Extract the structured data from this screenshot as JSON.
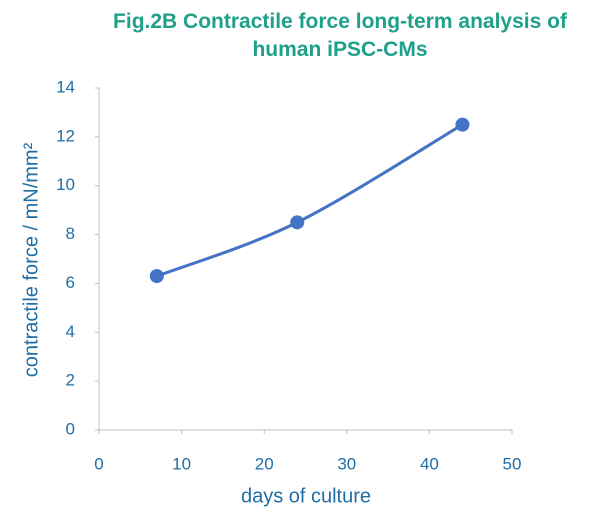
{
  "chart_data": {
    "type": "line",
    "title": "Fig.2B Contractile force long-term analysis of human iPSC-CMs",
    "x_label": "days of culture",
    "y_label": "contractile force / mN/mm²",
    "x": [
      7,
      24,
      44
    ],
    "series": [
      {
        "name": "contractile force",
        "color": "#4472c4",
        "values": [
          6.3,
          8.5,
          12.5
        ]
      }
    ],
    "xlim": [
      0,
      50
    ],
    "xticks": [
      0,
      10,
      20,
      30,
      40,
      50
    ],
    "ylim": [
      0,
      14
    ],
    "yticks": [
      0,
      2,
      4,
      6,
      8,
      10,
      12,
      14
    ],
    "grid": false,
    "smooth": true
  }
}
